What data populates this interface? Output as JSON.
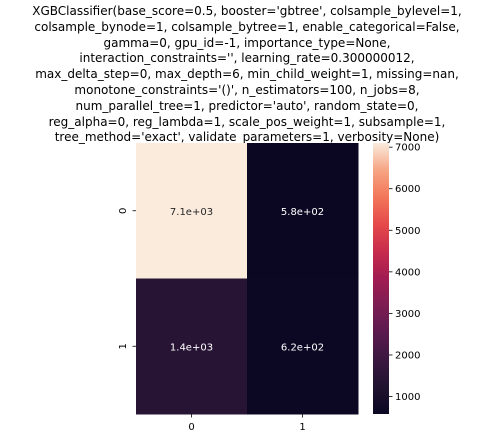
{
  "chart_data": {
    "type": "heatmap",
    "title_lines": [
      "XGBClassifier(base_score=0.5, booster='gbtree', colsample_bylevel=1,",
      "colsample_bynode=1, colsample_bytree=1, enable_categorical=False,",
      "gamma=0, gpu_id=-1, importance_type=None,",
      "interaction_constraints='', learning_rate=0.300000012,",
      "max_delta_step=0, max_depth=6, min_child_weight=1, missing=nan,",
      "monotone_constraints='()', n_estimators=100, n_jobs=8,",
      "num_parallel_tree=1, predictor='auto', random_state=0,",
      "reg_alpha=0, reg_lambda=1, scale_pos_weight=1, subsample=1,",
      "tree_method='exact', validate_parameters=1, verbosity=None)"
    ],
    "x_categories": [
      "0",
      "1"
    ],
    "y_categories": [
      "0",
      "1"
    ],
    "values": [
      [
        7100,
        580
      ],
      [
        1400,
        620
      ]
    ],
    "annotations": [
      [
        "7.1e+03",
        "5.8e+02"
      ],
      [
        "1.4e+03",
        "6.2e+02"
      ]
    ],
    "colorbar": {
      "min": 580,
      "max": 7100,
      "ticks": [
        1000,
        2000,
        3000,
        4000,
        5000,
        6000,
        7000
      ],
      "tick_labels": [
        "1000",
        "2000",
        "3000",
        "4000",
        "5000",
        "6000",
        "7000"
      ],
      "colormap": "rocket"
    },
    "grid": false
  }
}
